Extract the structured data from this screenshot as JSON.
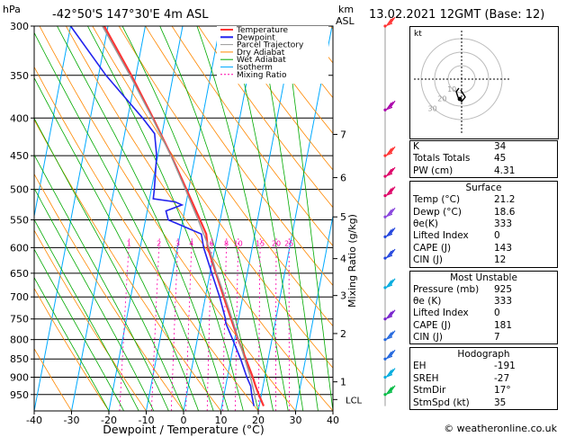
{
  "header": {
    "left_unit": "hPa",
    "location": "-42°50'S 147°30'E 4m ASL",
    "right_unit_km": "km",
    "right_unit_asl": "ASL",
    "datetime": "13.02.2021 12GMT (Base: 12)"
  },
  "footer": "© weatheronline.co.uk",
  "colors": {
    "temperature": "#ff3333",
    "dewpoint": "#2222ee",
    "parcel": "#999999",
    "dry_adiabat": "#ff8800",
    "wet_adiabat": "#00aa00",
    "isotherm": "#00aaff",
    "mixing_ratio": "#ff00aa"
  },
  "chart_data": {
    "type": "line",
    "title": "-42°50'S 147°30'E 4m ASL",
    "xlabel": "Dewpoint / Temperature (°C)",
    "ylabel": "hPa",
    "ylabel_right": "Mixing Ratio (g/kg)",
    "xlim": [
      -40,
      40
    ],
    "ylim": [
      1000,
      300
    ],
    "y_log_scale": true,
    "skew": true,
    "x_ticks": [
      "-40",
      "-30",
      "-20",
      "-10",
      "0",
      "10",
      "20",
      "30",
      "40"
    ],
    "pressure_ticks": [
      "300",
      "350",
      "400",
      "450",
      "500",
      "550",
      "600",
      "650",
      "700",
      "750",
      "800",
      "850",
      "900",
      "950"
    ],
    "km_ticks": [
      {
        "p": 913,
        "label": "1"
      },
      {
        "p": 785,
        "label": "2"
      },
      {
        "p": 697,
        "label": "3"
      },
      {
        "p": 621,
        "label": "4"
      },
      {
        "p": 545,
        "label": "5"
      },
      {
        "p": 482,
        "label": "6"
      },
      {
        "p": 421,
        "label": "7"
      }
    ],
    "lcl": {
      "p": 965,
      "label": "LCL"
    },
    "mixing_ratio_labels": [
      "1",
      "2",
      "3",
      "4",
      "6",
      "8",
      "10",
      "15",
      "20",
      "25"
    ],
    "legend": [
      "Temperature",
      "Dewpoint",
      "Parcel Trajectory",
      "Dry Adiabat",
      "Wet Adiabat",
      "Isotherm",
      "Mixing Ratio"
    ],
    "legend_position": "top-right of plot",
    "series": [
      {
        "name": "Temperature",
        "points": [
          [
            985,
            21.2
          ],
          [
            950,
            19.3
          ],
          [
            925,
            18.0
          ],
          [
            900,
            16.8
          ],
          [
            850,
            14.0
          ],
          [
            800,
            11.0
          ],
          [
            760,
            8.6
          ],
          [
            750,
            8.0
          ],
          [
            700,
            4.9
          ],
          [
            650,
            1.6
          ],
          [
            600,
            -1.9
          ],
          [
            575,
            -3.0
          ],
          [
            550,
            -5.4
          ],
          [
            500,
            -10.6
          ],
          [
            450,
            -16.4
          ],
          [
            400,
            -23.2
          ],
          [
            350,
            -31.2
          ],
          [
            300,
            -41.0
          ]
        ]
      },
      {
        "name": "Dewpoint",
        "points": [
          [
            985,
            18.6
          ],
          [
            950,
            17.4
          ],
          [
            925,
            16.7
          ],
          [
            900,
            15.2
          ],
          [
            850,
            12.6
          ],
          [
            800,
            9.5
          ],
          [
            760,
            6.8
          ],
          [
            750,
            6.5
          ],
          [
            700,
            3.8
          ],
          [
            650,
            0.5
          ],
          [
            600,
            -3.0
          ],
          [
            575,
            -4.3
          ],
          [
            560,
            -10.0
          ],
          [
            550,
            -13.9
          ],
          [
            535,
            -15.0
          ],
          [
            525,
            -11.0
          ],
          [
            520,
            -13.0
          ],
          [
            515,
            -19.0
          ],
          [
            500,
            -19.2
          ],
          [
            450,
            -20.3
          ],
          [
            420,
            -22.0
          ],
          [
            400,
            -26.0
          ],
          [
            350,
            -38.0
          ],
          [
            300,
            -50.0
          ]
        ]
      },
      {
        "name": "Parcel Trajectory",
        "points": [
          [
            965,
            18.6
          ],
          [
            950,
            18.2
          ],
          [
            900,
            16.2
          ],
          [
            850,
            13.7
          ],
          [
            800,
            11.1
          ],
          [
            750,
            8.3
          ],
          [
            700,
            5.2
          ],
          [
            650,
            1.8
          ],
          [
            600,
            -1.6
          ],
          [
            550,
            -5.9
          ],
          [
            500,
            -10.9
          ],
          [
            450,
            -16.5
          ],
          [
            400,
            -23.4
          ],
          [
            350,
            -31.6
          ],
          [
            300,
            -41.5
          ]
        ]
      }
    ]
  },
  "hodograph": {
    "label": "kt",
    "ring_labels": [
      "10",
      "20",
      "30"
    ]
  },
  "indices": {
    "top": [
      {
        "key": "K",
        "value": "34"
      },
      {
        "key": "Totals Totals",
        "value": "45"
      },
      {
        "key": "PW (cm)",
        "value": "4.31"
      }
    ],
    "surface": {
      "title": "Surface",
      "rows": [
        {
          "key": "Temp (°C)",
          "value": "21.2"
        },
        {
          "key": "Dewp (°C)",
          "value": "18.6"
        },
        {
          "key": "θe(K)",
          "value": "333"
        },
        {
          "key": "Lifted Index",
          "value": "0"
        },
        {
          "key": "CAPE (J)",
          "value": "143"
        },
        {
          "key": "CIN (J)",
          "value": "12"
        }
      ]
    },
    "most_unstable": {
      "title": "Most Unstable",
      "rows": [
        {
          "key": "Pressure (mb)",
          "value": "925"
        },
        {
          "key": "θe (K)",
          "value": "333"
        },
        {
          "key": "Lifted Index",
          "value": "0"
        },
        {
          "key": "CAPE (J)",
          "value": "181"
        },
        {
          "key": "CIN (J)",
          "value": "7"
        }
      ]
    },
    "hodograph": {
      "title": "Hodograph",
      "rows": [
        {
          "key": "EH",
          "value": "-191"
        },
        {
          "key": "SREH",
          "value": "-27"
        },
        {
          "key": "StmDir",
          "value": "17°"
        },
        {
          "key": "StmSpd (kt)",
          "value": "35"
        }
      ]
    }
  },
  "wind_barbs": [
    {
      "p": 300,
      "color": "#ff3333"
    },
    {
      "p": 390,
      "color": "#aa00aa"
    },
    {
      "p": 450,
      "color": "#ff3333"
    },
    {
      "p": 480,
      "color": "#dd0066"
    },
    {
      "p": 510,
      "color": "#dd0066"
    },
    {
      "p": 545,
      "color": "#8844dd"
    },
    {
      "p": 580,
      "color": "#2244dd"
    },
    {
      "p": 620,
      "color": "#2244dd"
    },
    {
      "p": 680,
      "color": "#00aadd"
    },
    {
      "p": 750,
      "color": "#7722cc"
    },
    {
      "p": 800,
      "color": "#2266dd"
    },
    {
      "p": 850,
      "color": "#2266dd"
    },
    {
      "p": 900,
      "color": "#00aadd"
    },
    {
      "p": 950,
      "color": "#00bb44"
    }
  ]
}
